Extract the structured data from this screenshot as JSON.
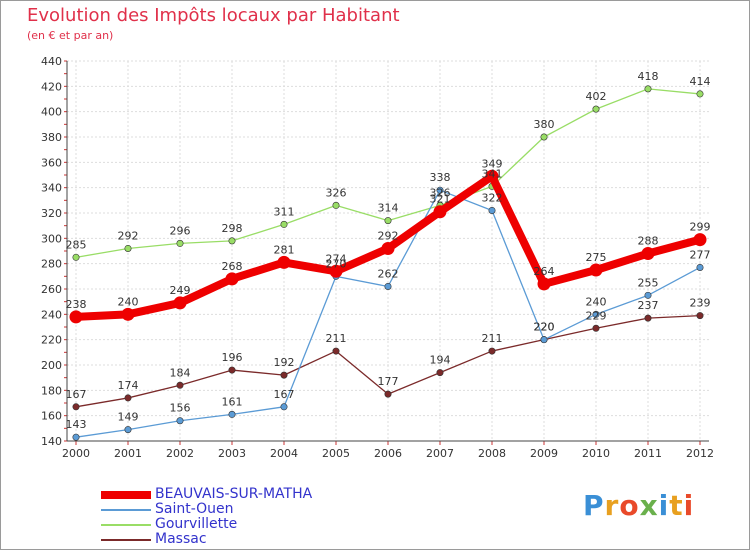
{
  "chart_data": {
    "type": "line",
    "title": "Evolution des Impôts locaux par Habitant",
    "subtitle": "(en € et par an)",
    "x": [
      "2000",
      "2001",
      "2002",
      "2003",
      "2004",
      "2005",
      "2006",
      "2007",
      "2008",
      "2009",
      "2010",
      "2011",
      "2012"
    ],
    "ylim": [
      140,
      440
    ],
    "yticks": [
      140,
      160,
      180,
      200,
      220,
      240,
      260,
      280,
      300,
      320,
      340,
      360,
      380,
      400,
      420,
      440
    ],
    "grid": true,
    "legend_position": "bottom-left",
    "series": [
      {
        "name": "BEAUVAIS-SUR-MATHA",
        "color": "#ee0000",
        "label_color": "#3333cc",
        "values": [
          238,
          240,
          249,
          268,
          281,
          274,
          292,
          321,
          349,
          264,
          275,
          288,
          299
        ]
      },
      {
        "name": "Saint-Ouen",
        "color": "#5b9bd5",
        "label_color": "#3333cc",
        "values": [
          143,
          149,
          156,
          161,
          167,
          270,
          262,
          338,
          322,
          220,
          240,
          255,
          277
        ]
      },
      {
        "name": "Gourvillette",
        "color": "#99dd66",
        "label_color": "#3333cc",
        "values": [
          285,
          292,
          296,
          298,
          311,
          326,
          314,
          326,
          341,
          380,
          402,
          418,
          414
        ]
      },
      {
        "name": "Massac",
        "color": "#7b2a2a",
        "label_color": "#3333cc",
        "values": [
          167,
          174,
          184,
          196,
          192,
          211,
          177,
          194,
          211,
          220,
          229,
          237,
          239
        ]
      }
    ],
    "data_labels": {
      "BEAUVAIS-SUR-MATHA": [
        "238",
        "240",
        "249",
        "268",
        "281",
        "274",
        "292",
        "321",
        "349",
        "264",
        "275",
        "288",
        "299"
      ],
      "Saint-Ouen": [
        "143",
        "149",
        "156",
        "161",
        "167",
        "270",
        "262",
        "338",
        "322",
        "220",
        "240",
        "255",
        "277"
      ],
      "Gourvillette": [
        "285",
        "292",
        "296",
        "298",
        "311",
        "326",
        "314",
        "326",
        "341",
        "380",
        "402",
        "418",
        "414"
      ],
      "Massac": [
        "167",
        "174",
        "184",
        "196",
        "192",
        "211",
        "177",
        "194",
        "211",
        "220",
        "229",
        "237",
        "239"
      ]
    }
  },
  "logo": {
    "text": "Proxiti",
    "letter_colors": [
      "#3a8fd6",
      "#e8a020",
      "#e94a2a",
      "#6ab04c",
      "#3a8fd6",
      "#e8a020",
      "#e94a2a"
    ]
  }
}
